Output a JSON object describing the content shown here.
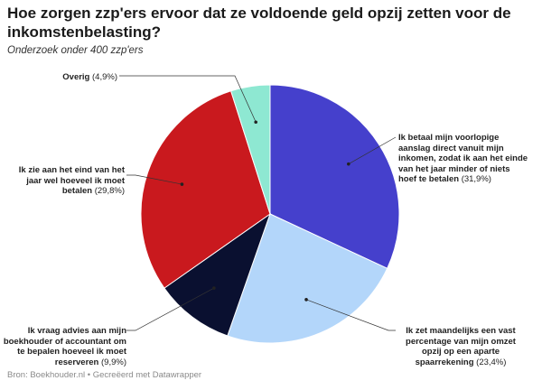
{
  "header": {
    "title": "Hoe zorgen zzp'ers ervoor dat ze voldoende geld opzij zetten voor de inkomstenbelasting?",
    "subtitle": "Onderzoek onder 400 zzp'ers"
  },
  "footer": {
    "source": "Bron: Boekhouder.nl",
    "credit": "Gecreëerd met Datawrapper",
    "separator": "•"
  },
  "chart_data": {
    "type": "pie",
    "unit": "%",
    "slices": [
      {
        "label": "Ik betaal mijn voorlopige aanslag direct vanuit mijn inkomen, zodat ik aan het einde van het jaar minder of niets hoef te betalen",
        "value": 31.9,
        "value_label": "(31,9%)",
        "color": "#4540cc"
      },
      {
        "label": "Ik zet maandelijks een vast percentage van mijn omzet opzij op een aparte spaarrekening",
        "value": 23.4,
        "value_label": "(23,4%)",
        "color": "#b3d6fa"
      },
      {
        "label": "Ik vraag advies aan mijn boekhouder of accountant om te bepalen hoeveel ik moet reserveren",
        "value": 9.9,
        "value_label": "(9,9%)",
        "color": "#0a1030"
      },
      {
        "label": "Ik zie aan het eind van het jaar wel hoeveel ik moet betalen",
        "value": 29.8,
        "value_label": "(29,8%)",
        "color": "#c9191e"
      },
      {
        "label": "Overig",
        "value": 4.9,
        "value_label": "(4,9%)",
        "color": "#8ee8d2"
      }
    ]
  }
}
